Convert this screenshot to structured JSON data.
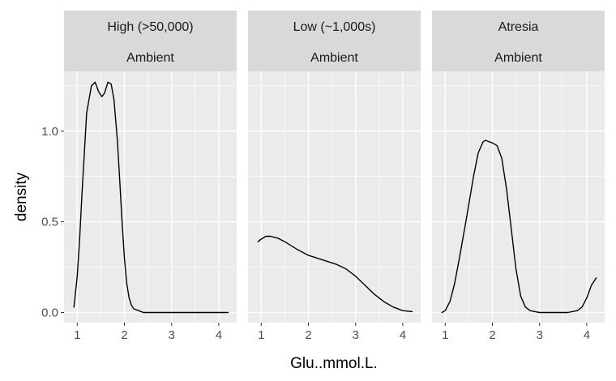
{
  "chart_data": {
    "type": "line",
    "xlabel": "Glu..mmol.L.",
    "ylabel": "density",
    "xlim": [
      0.72,
      4.38
    ],
    "ylim": [
      -0.056,
      1.33
    ],
    "x_ticks": [
      1,
      2,
      3,
      4
    ],
    "y_ticks": [
      0.0,
      0.5,
      1.0
    ],
    "y_tick_labels": [
      "0.0",
      "0.5",
      "1.0"
    ],
    "grid": true,
    "colors": {
      "panel_background": "#EBEBEB",
      "strip_background": "#D9D9D9",
      "grid_line": "#FFFFFF",
      "density_line": "#000000"
    },
    "panels": [
      {
        "strip": [
          "High (>50,000)",
          "Ambient"
        ],
        "x": [
          0.93,
          1.0,
          1.05,
          1.1,
          1.2,
          1.3,
          1.38,
          1.45,
          1.52,
          1.58,
          1.65,
          1.72,
          1.78,
          1.85,
          1.9,
          1.95,
          2.0,
          2.05,
          2.1,
          2.15,
          2.2,
          2.3,
          2.4,
          3.0,
          4.2
        ],
        "y": [
          0.03,
          0.2,
          0.4,
          0.65,
          1.1,
          1.25,
          1.27,
          1.22,
          1.19,
          1.21,
          1.27,
          1.26,
          1.17,
          0.95,
          0.73,
          0.5,
          0.3,
          0.16,
          0.08,
          0.04,
          0.02,
          0.01,
          0.0,
          0.0,
          0.0
        ]
      },
      {
        "strip": [
          "Low (~1,000s)",
          "Ambient"
        ],
        "x": [
          0.93,
          1.0,
          1.1,
          1.2,
          1.35,
          1.5,
          1.75,
          2.0,
          2.3,
          2.6,
          2.8,
          3.0,
          3.2,
          3.4,
          3.6,
          3.8,
          4.0,
          4.2
        ],
        "y": [
          0.39,
          0.405,
          0.42,
          0.42,
          0.41,
          0.39,
          0.35,
          0.315,
          0.29,
          0.265,
          0.24,
          0.2,
          0.15,
          0.1,
          0.06,
          0.03,
          0.01,
          0.005
        ]
      },
      {
        "strip": [
          "Atresia",
          "Ambient"
        ],
        "x": [
          0.93,
          1.0,
          1.1,
          1.2,
          1.3,
          1.45,
          1.6,
          1.7,
          1.8,
          1.85,
          1.9,
          2.0,
          2.1,
          2.2,
          2.3,
          2.4,
          2.5,
          2.6,
          2.7,
          2.8,
          2.9,
          3.0,
          3.3,
          3.6,
          3.8,
          3.9,
          4.0,
          4.1,
          4.2
        ],
        "y": [
          0.0,
          0.01,
          0.06,
          0.16,
          0.3,
          0.52,
          0.75,
          0.88,
          0.94,
          0.95,
          0.945,
          0.935,
          0.92,
          0.85,
          0.68,
          0.46,
          0.24,
          0.09,
          0.03,
          0.01,
          0.005,
          0.0,
          0.0,
          0.0,
          0.01,
          0.03,
          0.08,
          0.15,
          0.19
        ]
      }
    ]
  }
}
